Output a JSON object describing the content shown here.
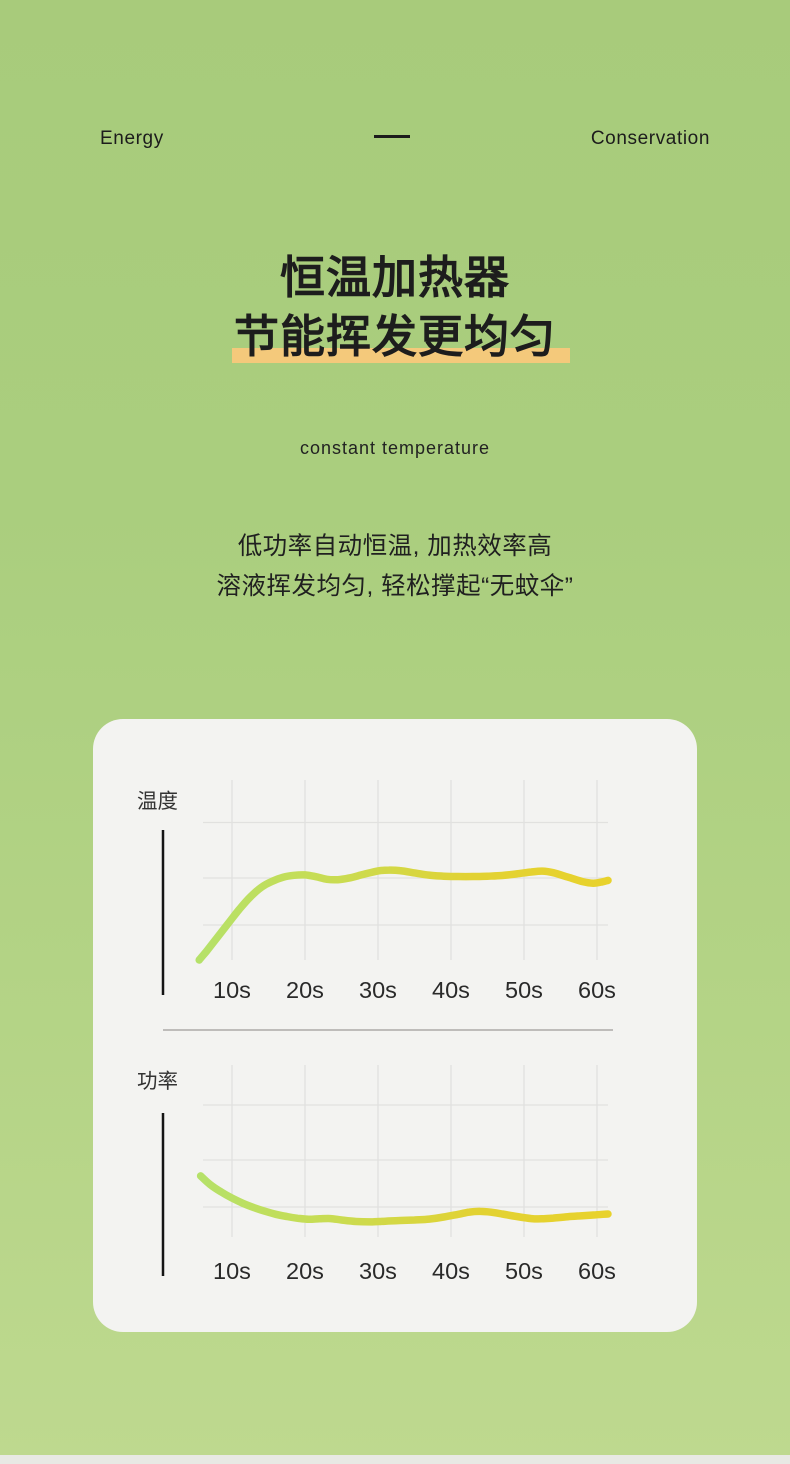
{
  "page": {
    "header": {
      "left": "Energy",
      "right": "Conservation"
    },
    "title": {
      "line1": "恒温加热器",
      "line2": "节能挥发更均匀"
    },
    "eyebrow": "constant temperature",
    "body": [
      "低功率自动恒温, 加热效率高",
      "溶液挥发均匀, 轻松撑起“无蚊伞”"
    ],
    "colors": {
      "bg_top": "#a8cb7b",
      "bg_bottom": "#bed98f",
      "card": "#f3f3f1",
      "highlight": "#f4c97b",
      "grid": "#e1e1df",
      "axis": "#141414",
      "divider": "#b6b5b2",
      "tick_text": "#2a2a2a",
      "label_text": "#333333",
      "line_green": "#b5e169",
      "line_yellow": "#e8d22c"
    }
  },
  "chart_data": [
    {
      "type": "line",
      "ylabel": "温度",
      "xlabel": "",
      "x_ticks": [
        "10s",
        "20s",
        "30s",
        "40s",
        "50s",
        "60s"
      ],
      "x_tick_seconds": [
        10,
        20,
        30,
        40,
        50,
        60
      ],
      "x_range": [
        4,
        62
      ],
      "ylim": [
        0,
        100
      ],
      "grid": true,
      "legend": "none",
      "line_gradient": [
        "#b5e169",
        "#c9dc52",
        "#e2d233",
        "#e8d22c"
      ],
      "series": [
        {
          "name": "温度",
          "x": [
            5.5,
            6.5,
            8,
            9.5,
            11,
            12.5,
            14,
            15.5,
            17,
            18.5,
            20,
            21.5,
            23,
            24.5,
            26,
            28,
            30,
            31.5,
            33,
            35,
            37,
            39,
            41,
            43,
            45,
            47,
            49,
            51,
            52.5,
            54,
            56,
            58,
            59.5,
            60.7,
            61.5
          ],
          "y": [
            0,
            5,
            13,
            21,
            29,
            36,
            41.5,
            45,
            47.3,
            48.4,
            48.6,
            47.6,
            46.1,
            45.9,
            46.8,
            48.9,
            50.9,
            51.4,
            51.1,
            49.8,
            48.5,
            47.9,
            47.7,
            47.7,
            47.9,
            48.3,
            49.2,
            50.3,
            50.8,
            49.9,
            47.4,
            44.8,
            43.9,
            44.6,
            45.5
          ]
        }
      ]
    },
    {
      "type": "line",
      "ylabel": "功率",
      "xlabel": "",
      "x_ticks": [
        "10s",
        "20s",
        "30s",
        "40s",
        "50s",
        "60s"
      ],
      "x_tick_seconds": [
        10,
        20,
        30,
        40,
        50,
        60
      ],
      "x_range": [
        4,
        62
      ],
      "ylim": [
        0,
        100
      ],
      "grid": true,
      "legend": "none",
      "line_gradient": [
        "#b5e169",
        "#c9dc52",
        "#e2d233",
        "#e8d22c"
      ],
      "series": [
        {
          "name": "功率",
          "x": [
            5.7,
            7,
            8.5,
            10,
            11.5,
            13,
            14.5,
            16,
            17.5,
            19,
            20.5,
            22,
            23.5,
            25,
            27,
            29,
            31,
            33,
            35,
            37,
            39,
            41,
            42.5,
            44,
            45.5,
            47,
            49,
            51,
            52.5,
            54,
            56,
            58,
            59.5,
            60.8,
            61.5
          ],
          "y": [
            35.5,
            30.5,
            26.2,
            22.6,
            19.6,
            17.1,
            15,
            13.2,
            11.9,
            10.9,
            10.3,
            10.6,
            10.7,
            9.9,
            9,
            8.8,
            9.2,
            9.6,
            9.9,
            10.4,
            11.6,
            13.2,
            14.5,
            14.9,
            14.4,
            13.4,
            11.9,
            10.7,
            10.6,
            11,
            11.8,
            12.4,
            12.8,
            13.2,
            13.4
          ]
        }
      ]
    }
  ]
}
